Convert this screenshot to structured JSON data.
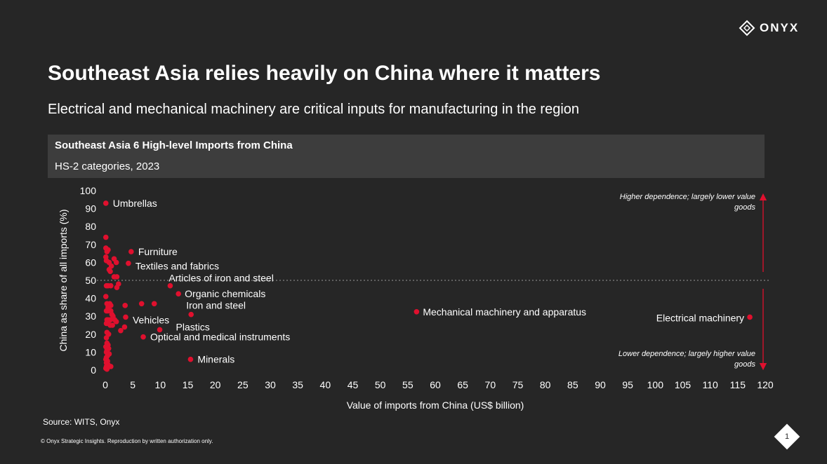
{
  "brand": {
    "logo_text": "ONYX",
    "logo_icon": "diamond-logo-icon"
  },
  "slide": {
    "title": "Southeast Asia relies heavily on China where it matters",
    "subtitle": "Electrical and mechanical machinery are critical inputs for manufacturing in the region",
    "source": "Source: WITS, Onyx",
    "copyright": "© Onyx Strategic Insights. Reproduction by written authorization only.",
    "page_number": "1"
  },
  "colors": {
    "background": "#262626",
    "header_bar": "#3d3d3d",
    "point": "#e0102e",
    "text": "#ffffff",
    "reference_line": "#9a9a9a"
  },
  "chart_data": {
    "type": "scatter",
    "title": "Southeast Asia 6 High-level Imports from China",
    "subtitle": "HS-2 categories, 2023",
    "xlabel": "Value of imports from China (US$ billion)",
    "ylabel": "China as share of all imports (%)",
    "xlim": [
      0,
      120
    ],
    "ylim": [
      0,
      100
    ],
    "x_ticks": [
      0,
      5,
      10,
      15,
      20,
      25,
      30,
      35,
      40,
      45,
      50,
      55,
      60,
      65,
      70,
      75,
      80,
      85,
      90,
      95,
      100,
      105,
      110,
      115,
      120
    ],
    "y_ticks": [
      0,
      10,
      20,
      30,
      40,
      50,
      60,
      70,
      80,
      90,
      100
    ],
    "grid": false,
    "reference_line": {
      "y": 50,
      "style": "dotted"
    },
    "annotations": {
      "top": "Higher dependence; largely lower value goods",
      "bottom": "Lower dependence; largely higher value goods"
    },
    "labeled_points": [
      {
        "label": "Umbrellas",
        "x": 0.1,
        "y": 93
      },
      {
        "label": "Furniture",
        "x": 4.7,
        "y": 66
      },
      {
        "label": "Textiles and fabrics",
        "x": 4.2,
        "y": 59.5
      },
      {
        "label": "Articles of iron and steel",
        "x": 11.8,
        "y": 47
      },
      {
        "label": "Organic chemicals",
        "x": 13.3,
        "y": 42.5
      },
      {
        "label": "Iron and steel",
        "x": 15.6,
        "y": 31
      },
      {
        "label": "Vehicles",
        "x": 3.7,
        "y": 29.5
      },
      {
        "label": "Plastics",
        "x": 9.9,
        "y": 22.5
      },
      {
        "label": "Optical and medical instruments",
        "x": 6.9,
        "y": 18.5
      },
      {
        "label": "Minerals",
        "x": 15.5,
        "y": 6
      },
      {
        "label": "Mechanical machinery and apparatus",
        "x": 56.6,
        "y": 32.5
      },
      {
        "label": "Electrical machinery",
        "x": 117.2,
        "y": 29.5
      }
    ],
    "other_points": [
      [
        0.1,
        74
      ],
      [
        0.1,
        68
      ],
      [
        0.5,
        67
      ],
      [
        0.3,
        66
      ],
      [
        0.1,
        63
      ],
      [
        0.2,
        61
      ],
      [
        0.7,
        60
      ],
      [
        1.6,
        62
      ],
      [
        2.0,
        60
      ],
      [
        1.1,
        58
      ],
      [
        0.7,
        56
      ],
      [
        0.9,
        55
      ],
      [
        1.6,
        52
      ],
      [
        2.1,
        52
      ],
      [
        0.2,
        47
      ],
      [
        0.5,
        47
      ],
      [
        1.0,
        47
      ],
      [
        2.4,
        48
      ],
      [
        2.1,
        46
      ],
      [
        0.1,
        41
      ],
      [
        0.3,
        37
      ],
      [
        0.8,
        37
      ],
      [
        1.0,
        36
      ],
      [
        0.5,
        35
      ],
      [
        0.2,
        33
      ],
      [
        0.5,
        33
      ],
      [
        1.0,
        33
      ],
      [
        1.2,
        31
      ],
      [
        1.4,
        30
      ],
      [
        0.3,
        28
      ],
      [
        0.5,
        28
      ],
      [
        0.9,
        28
      ],
      [
        1.7,
        28
      ],
      [
        2.0,
        27
      ],
      [
        0.2,
        26
      ],
      [
        0.5,
        26
      ],
      [
        0.9,
        25
      ],
      [
        1.3,
        25
      ],
      [
        3.6,
        36
      ],
      [
        6.6,
        37
      ],
      [
        8.9,
        37
      ],
      [
        3.5,
        24
      ],
      [
        2.8,
        22
      ],
      [
        0.3,
        21
      ],
      [
        0.6,
        20
      ],
      [
        0.2,
        18
      ],
      [
        0.3,
        15
      ],
      [
        0.5,
        14
      ],
      [
        0.1,
        13
      ],
      [
        0.6,
        12
      ],
      [
        0.3,
        11
      ],
      [
        0.2,
        10
      ],
      [
        0.7,
        9
      ],
      [
        0.4,
        8
      ],
      [
        0.2,
        7
      ],
      [
        0.1,
        6
      ],
      [
        0.4,
        5
      ],
      [
        0.2,
        4
      ],
      [
        0.5,
        3
      ],
      [
        0.2,
        2
      ],
      [
        0.1,
        1
      ],
      [
        1.0,
        2
      ],
      [
        0.3,
        0.5
      ]
    ]
  }
}
